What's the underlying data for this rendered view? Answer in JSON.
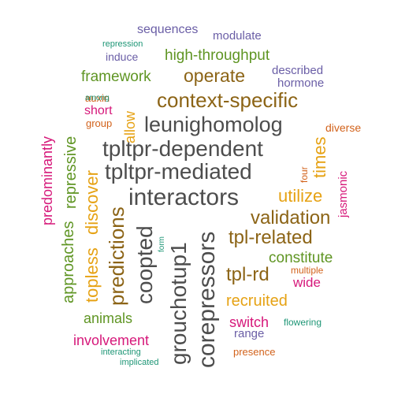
{
  "title": "",
  "colors": {
    "charcoal": "#4d4d4d",
    "brown": "#8c6416",
    "olive": "#5f9523",
    "magenta": "#d6187a",
    "purple": "#6a5ea6",
    "orange": "#d2621b",
    "teal": "#1e9676",
    "gold": "#e6a214"
  },
  "words": [
    {
      "id": "interactors",
      "text": "interactors",
      "color": "charcoal"
    },
    {
      "id": "tpltpr_dependent",
      "text": "tpltpr-dependent",
      "color": "charcoal"
    },
    {
      "id": "tpltpr_mediated",
      "text": "tpltpr-mediated",
      "color": "charcoal"
    },
    {
      "id": "leunighomolog",
      "text": "leunighomolog",
      "color": "charcoal"
    },
    {
      "id": "corepressors",
      "text": "corepressors",
      "color": "charcoal"
    },
    {
      "id": "grouchotup1",
      "text": "grouchotup1",
      "color": "charcoal"
    },
    {
      "id": "coopted",
      "text": "coopted",
      "color": "charcoal"
    },
    {
      "id": "context_specific",
      "text": "context-specific",
      "color": "brown"
    },
    {
      "id": "operate",
      "text": "operate",
      "color": "brown"
    },
    {
      "id": "validation",
      "text": "validation",
      "color": "brown"
    },
    {
      "id": "tpl_related",
      "text": "tpl-related",
      "color": "brown"
    },
    {
      "id": "tpl_rd",
      "text": "tpl-rd",
      "color": "brown"
    },
    {
      "id": "predictions",
      "text": "predictions",
      "color": "brown"
    },
    {
      "id": "topless",
      "text": "topless",
      "color": "gold"
    },
    {
      "id": "discover",
      "text": "discover",
      "color": "gold"
    },
    {
      "id": "utilize",
      "text": "utilize",
      "color": "gold"
    },
    {
      "id": "times",
      "text": "times",
      "color": "gold"
    },
    {
      "id": "allow",
      "text": "allow",
      "color": "gold"
    },
    {
      "id": "recruited",
      "text": "recruited",
      "color": "gold"
    },
    {
      "id": "high_throughput",
      "text": "high-throughput",
      "color": "olive"
    },
    {
      "id": "framework",
      "text": "framework",
      "color": "olive"
    },
    {
      "id": "repressive",
      "text": "repressive",
      "color": "olive"
    },
    {
      "id": "approaches",
      "text": "approaches",
      "color": "olive"
    },
    {
      "id": "constitute",
      "text": "constitute",
      "color": "olive"
    },
    {
      "id": "animals",
      "text": "animals",
      "color": "olive"
    },
    {
      "id": "predominantly",
      "text": "predominantly",
      "color": "magenta"
    },
    {
      "id": "jasmonic",
      "text": "jasmonic",
      "color": "magenta"
    },
    {
      "id": "short",
      "text": "short",
      "color": "magenta"
    },
    {
      "id": "wide",
      "text": "wide",
      "color": "magenta"
    },
    {
      "id": "switch",
      "text": "switch",
      "color": "magenta"
    },
    {
      "id": "involvement",
      "text": "involvement",
      "color": "magenta"
    },
    {
      "id": "sequences",
      "text": "sequences",
      "color": "purple"
    },
    {
      "id": "modulate",
      "text": "modulate",
      "color": "purple"
    },
    {
      "id": "induce",
      "text": "induce",
      "color": "purple"
    },
    {
      "id": "described",
      "text": "described",
      "color": "purple"
    },
    {
      "id": "hormone",
      "text": "hormone",
      "color": "purple"
    },
    {
      "id": "range",
      "text": "range",
      "color": "purple"
    },
    {
      "id": "auxin",
      "text": "auxin",
      "color": "orange"
    },
    {
      "id": "group",
      "text": "group",
      "color": "orange"
    },
    {
      "id": "diverse",
      "text": "diverse",
      "color": "orange"
    },
    {
      "id": "four",
      "text": "four",
      "color": "orange"
    },
    {
      "id": "multiple",
      "text": "multiple",
      "color": "orange"
    },
    {
      "id": "presence",
      "text": "presence",
      "color": "orange"
    },
    {
      "id": "repression",
      "text": "repression",
      "color": "teal"
    },
    {
      "id": "among",
      "text": "among",
      "color": "teal"
    },
    {
      "id": "form",
      "text": "form",
      "color": "teal"
    },
    {
      "id": "flowering",
      "text": "flowering",
      "color": "teal"
    },
    {
      "id": "interacting",
      "text": "interacting",
      "color": "teal"
    },
    {
      "id": "implicated",
      "text": "implicated",
      "color": "teal"
    }
  ]
}
